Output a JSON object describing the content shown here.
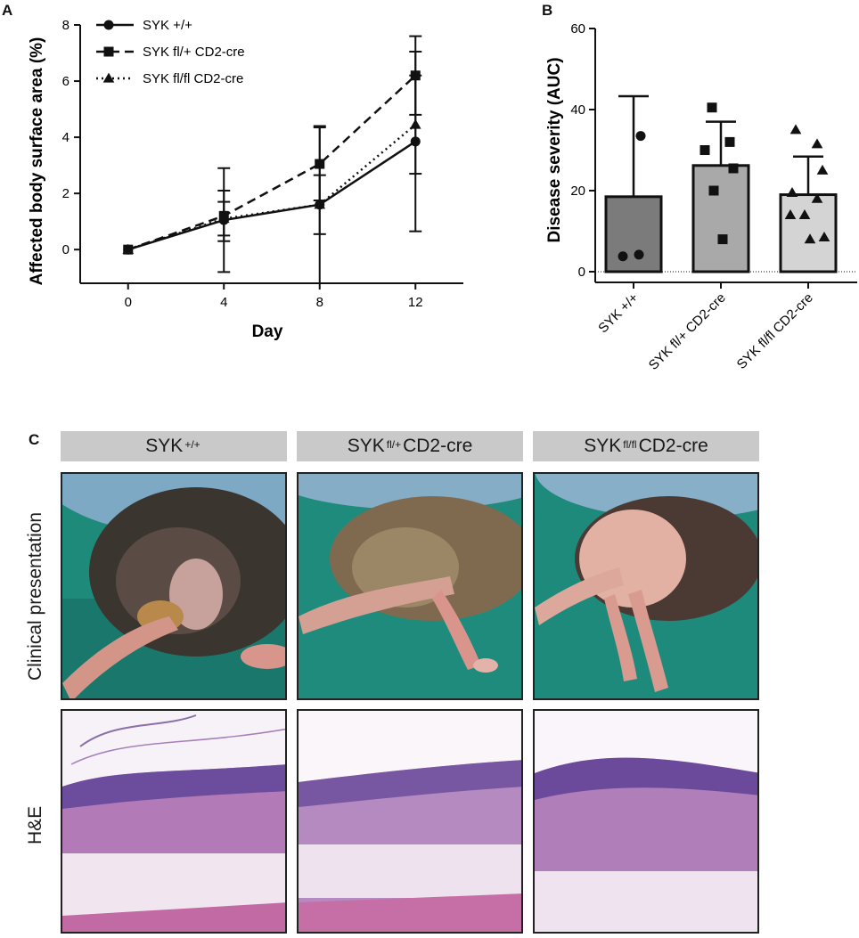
{
  "panels": {
    "a": "A",
    "b": "B",
    "c": "C"
  },
  "chart_data": [
    {
      "type": "line",
      "panel": "A",
      "xlabel": "Day",
      "ylabel": "Affected body surface area (%)",
      "x": [
        0,
        4,
        8,
        12
      ],
      "xticks": [
        "0",
        "4",
        "8",
        "12"
      ],
      "yticks": [
        "0",
        "2",
        "4",
        "6",
        "8"
      ],
      "xlim": [
        -2,
        14
      ],
      "ylim": [
        -1.2,
        8
      ],
      "grid": false,
      "legend": "top-left",
      "series": [
        {
          "name": "SYK +/+",
          "marker": "circle",
          "line": "solid",
          "values": [
            0,
            1.05,
            1.6,
            3.85
          ],
          "err": [
            0,
            1.85,
            2.8,
            3.2
          ]
        },
        {
          "name": "SYK fl/+ CD2-cre",
          "marker": "square",
          "line": "dashed",
          "values": [
            0,
            1.2,
            3.05,
            6.2
          ],
          "err": [
            0,
            0.9,
            1.3,
            1.4
          ]
        },
        {
          "name": "SYK fl/fl CD2-cre",
          "marker": "triangle",
          "line": "dotted",
          "values": [
            0,
            1.1,
            1.6,
            4.45
          ],
          "err": [
            0,
            0.6,
            1.05,
            1.75
          ]
        }
      ]
    },
    {
      "type": "bar",
      "panel": "B",
      "ylabel": "Disease severity (AUC)",
      "categories": [
        "SYK +/+",
        "SYK fl/+ CD2-cre",
        "SYK fl/fl CD2-cre"
      ],
      "values": [
        18.5,
        26.2,
        19
      ],
      "err": [
        24.8,
        10.8,
        9.4
      ],
      "yticks": [
        "0",
        "20",
        "40",
        "60"
      ],
      "ylim": [
        0,
        60
      ],
      "bar_colors": [
        "#7b7b7b",
        "#a9a9a9",
        "#d4d4d4"
      ],
      "points": [
        {
          "marker": "circle",
          "values": [
            33.5,
            3.8,
            4.2
          ]
        },
        {
          "marker": "square",
          "values": [
            40.5,
            32,
            30,
            25.5,
            20,
            8
          ]
        },
        {
          "marker": "triangle",
          "values": [
            35,
            31.5,
            25,
            19.5,
            18,
            14,
            14,
            8,
            8.5
          ]
        }
      ],
      "reference_line": 0
    }
  ],
  "figure_c": {
    "columns": [
      {
        "base": "SYK",
        "sup": "+/+",
        "rest": ""
      },
      {
        "base": "SYK ",
        "sup": "fl/+",
        "rest": " CD2-cre"
      },
      {
        "base": "SYK ",
        "sup": "fl/fl",
        "rest": " CD2-cre"
      }
    ],
    "rows": [
      "Clinical presentation",
      "H&E"
    ]
  },
  "colors": {
    "line": "#111111",
    "photo_background": "#1d8a7a",
    "stain_pink": "#d9a8d6",
    "stain_purple": "#6d4a9a",
    "header_gray": "#c9c9c9"
  }
}
